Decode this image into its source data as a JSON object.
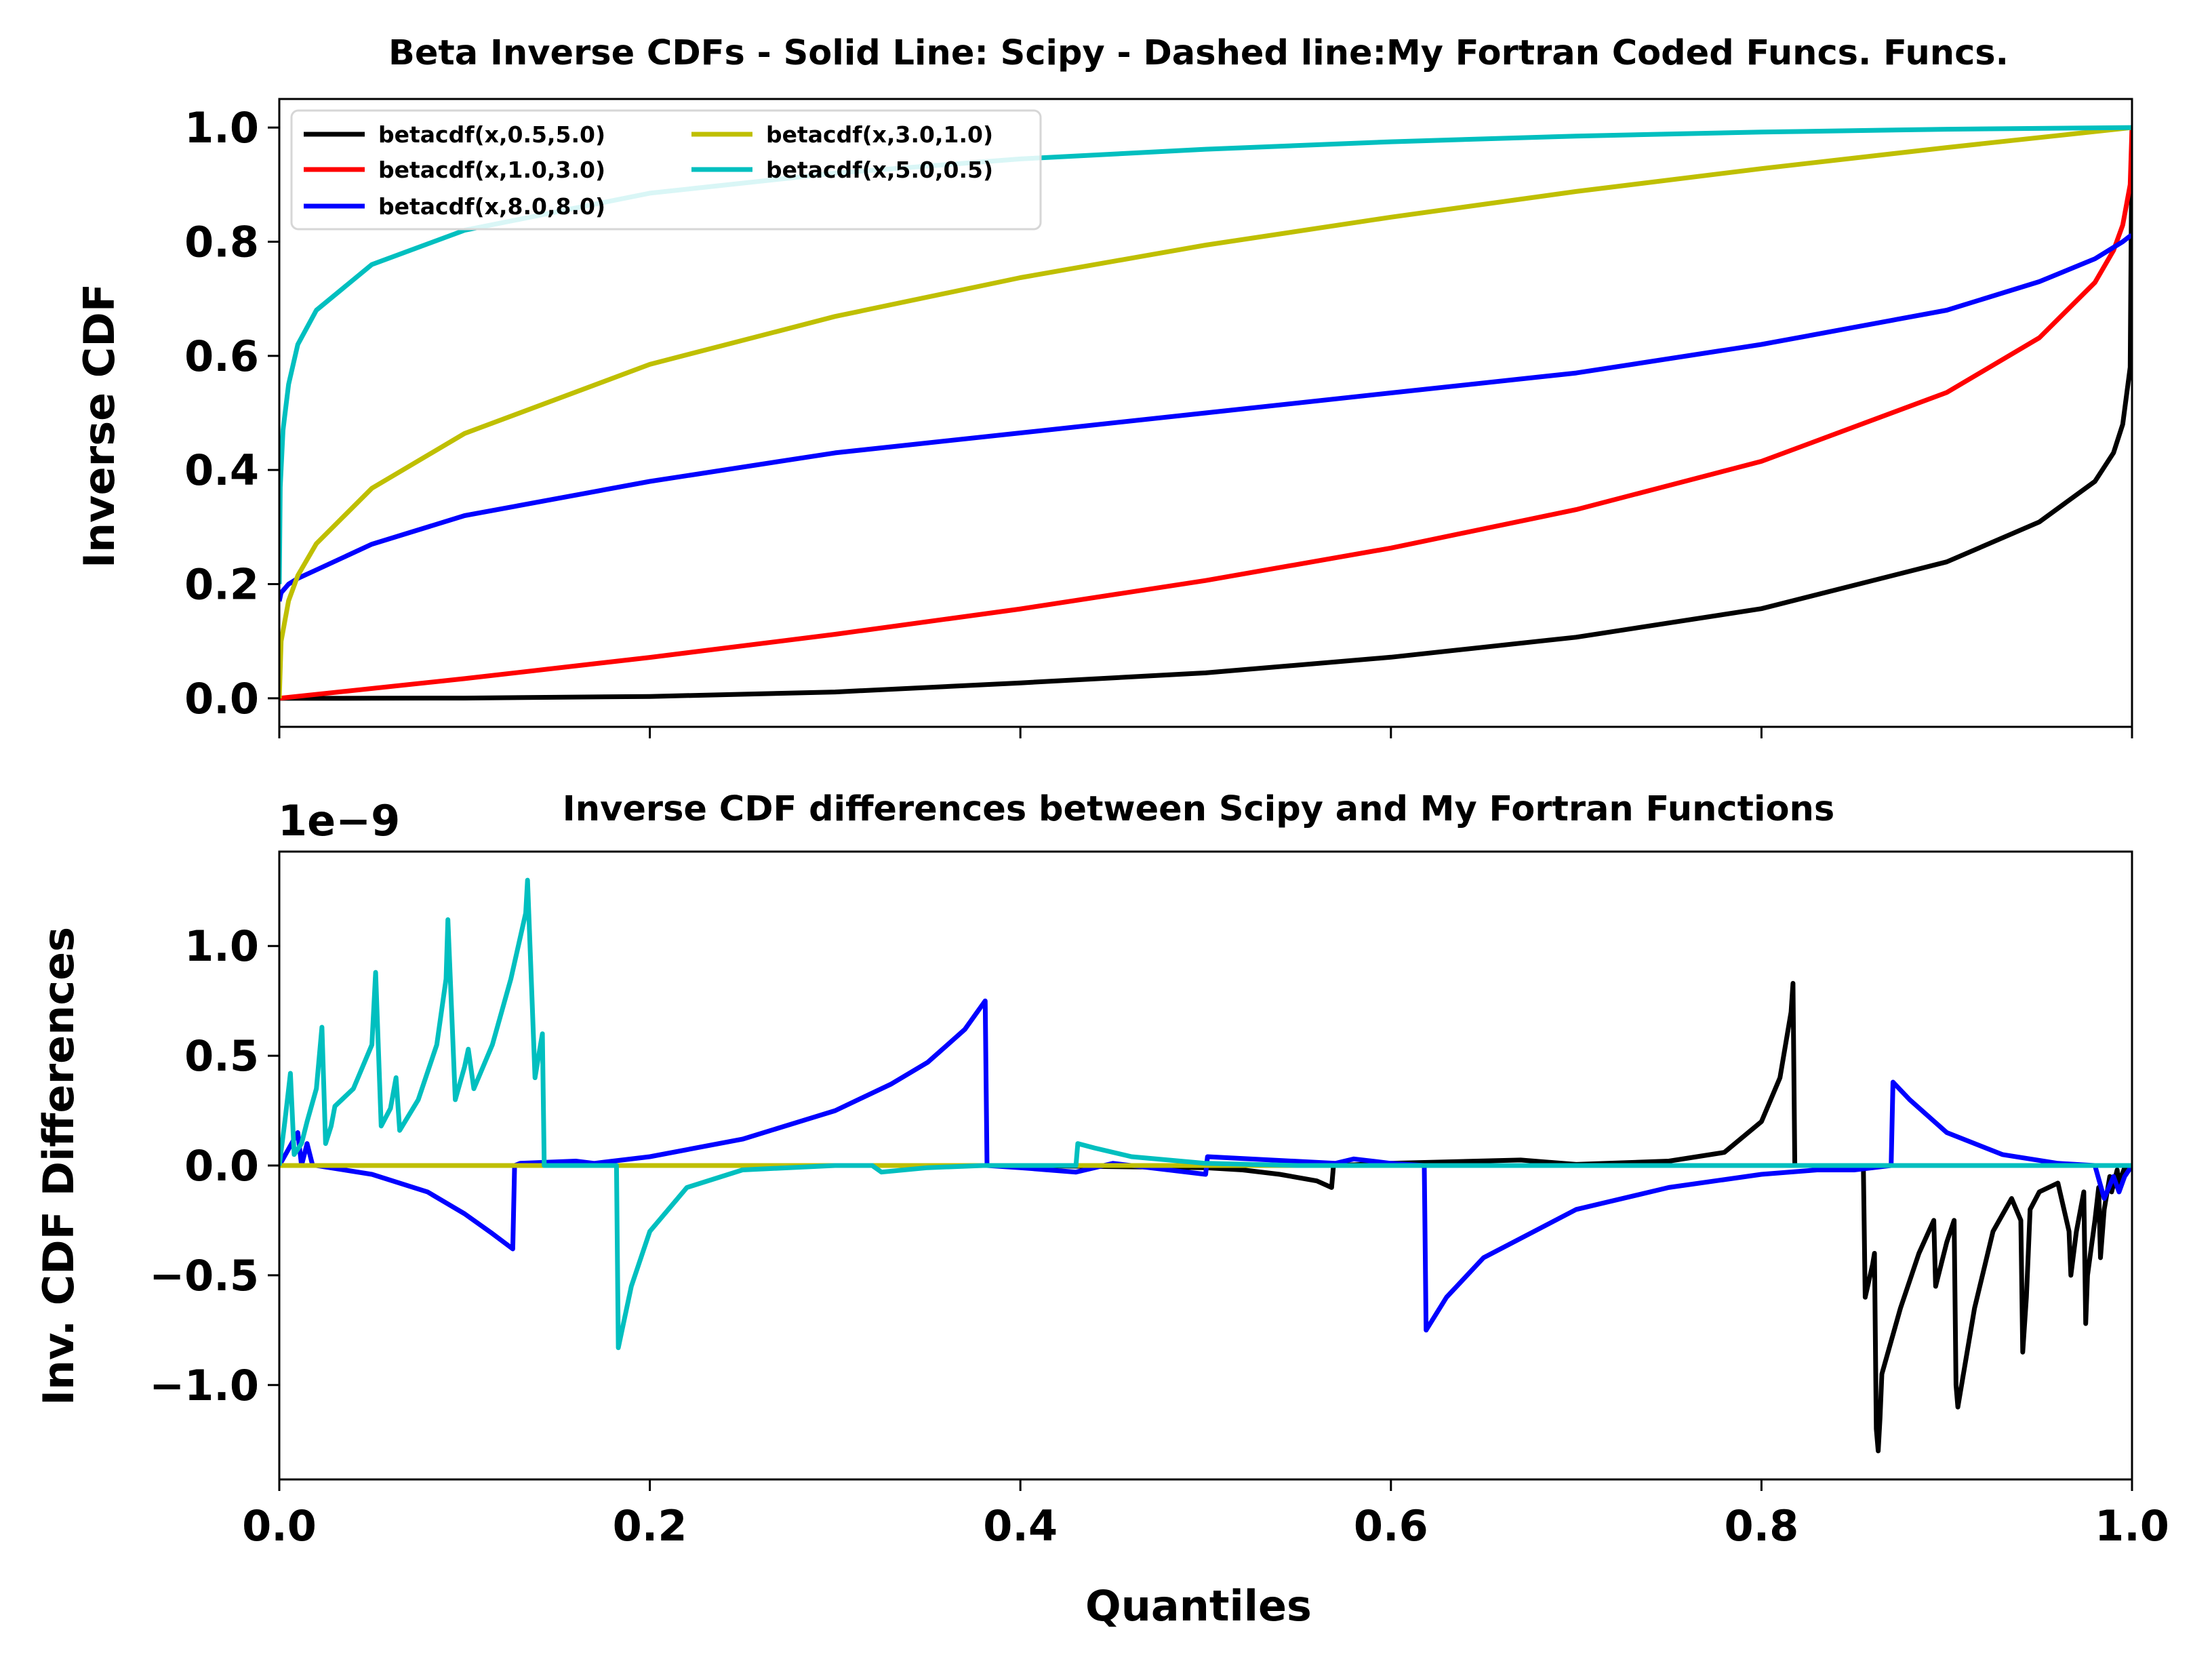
{
  "chart_data": [
    {
      "type": "line",
      "title": "Beta Inverse CDFs - Solid Line: Scipy - Dashed line:My Fortran Coded Funcs. Funcs.",
      "xlabel": "",
      "ylabel": "Inverse CDF",
      "xlim": [
        0,
        1
      ],
      "ylim": [
        -0.05,
        1.05
      ],
      "xticks": [
        0.0,
        0.2,
        0.4,
        0.6,
        0.8,
        1.0
      ],
      "xtick_labels_shown": false,
      "yticks": [
        0.0,
        0.2,
        0.4,
        0.6,
        0.8,
        1.0
      ],
      "ytick_labels": [
        "0.0",
        "0.2",
        "0.4",
        "0.6",
        "0.8",
        "1.0"
      ],
      "grid": false,
      "legend_position": "top-left",
      "legend_columns": 2,
      "series": [
        {
          "name": "betacdf(x,0.5,5.0)",
          "color": "#000000",
          "x": [
            0,
            0.05,
            0.1,
            0.2,
            0.3,
            0.4,
            0.5,
            0.6,
            0.7,
            0.8,
            0.9,
            0.95,
            0.98,
            0.99,
            0.995,
            0.999,
            1.0
          ],
          "y": [
            0,
            0.0001,
            0.0004,
            0.0032,
            0.011,
            0.027,
            0.0445,
            0.072,
            0.107,
            0.157,
            0.239,
            0.309,
            0.38,
            0.43,
            0.48,
            0.58,
            1.0
          ]
        },
        {
          "name": "betacdf(x,1.0,3.0)",
          "color": "#ff0000",
          "x": [
            0,
            0.1,
            0.2,
            0.3,
            0.4,
            0.5,
            0.6,
            0.7,
            0.8,
            0.9,
            0.95,
            0.98,
            0.99,
            0.995,
            0.999,
            1.0
          ],
          "y": [
            0,
            0.0345,
            0.0717,
            0.1121,
            0.1566,
            0.2063,
            0.2632,
            0.3306,
            0.4152,
            0.5358,
            0.6316,
            0.7286,
            0.7846,
            0.829,
            0.9,
            1.0
          ]
        },
        {
          "name": "betacdf(x,8.0,8.0)",
          "color": "#0000ff",
          "x": [
            0,
            0.001,
            0.005,
            0.01,
            0.02,
            0.05,
            0.1,
            0.2,
            0.3,
            0.4,
            0.5,
            0.6,
            0.7,
            0.8,
            0.9,
            0.95,
            0.98,
            0.99,
            0.995,
            0.999,
            1.0
          ],
          "y": [
            0.17,
            0.185,
            0.2,
            0.21,
            0.225,
            0.27,
            0.32,
            0.38,
            0.43,
            0.465,
            0.5,
            0.535,
            0.57,
            0.62,
            0.68,
            0.73,
            0.77,
            0.79,
            0.8,
            0.81,
            0.81
          ]
        },
        {
          "name": "betacdf(x,3.0,1.0)",
          "color": "#bfbf00",
          "x": [
            0,
            0.001,
            0.005,
            0.01,
            0.02,
            0.05,
            0.1,
            0.2,
            0.3,
            0.4,
            0.5,
            0.6,
            0.7,
            0.8,
            0.9,
            1.0
          ],
          "y": [
            0,
            0.1,
            0.171,
            0.215,
            0.271,
            0.368,
            0.464,
            0.585,
            0.669,
            0.737,
            0.794,
            0.843,
            0.888,
            0.928,
            0.965,
            1.0
          ]
        },
        {
          "name": "betacdf(x,5.0,0.5)",
          "color": "#00bfbf",
          "x": [
            0,
            0.0005,
            0.002,
            0.005,
            0.01,
            0.02,
            0.05,
            0.1,
            0.2,
            0.3,
            0.4,
            0.5,
            0.6,
            0.7,
            0.8,
            0.9,
            1.0
          ],
          "y": [
            0.2,
            0.37,
            0.47,
            0.55,
            0.62,
            0.68,
            0.76,
            0.82,
            0.885,
            0.92,
            0.945,
            0.962,
            0.975,
            0.985,
            0.992,
            0.997,
            1.0
          ]
        }
      ]
    },
    {
      "type": "line",
      "title": "Inverse CDF differences between Scipy and My Fortran Functions",
      "xlabel": "Quantiles",
      "ylabel": "Inv. CDF Differences",
      "offset_label": "1e−9",
      "xlim": [
        0,
        1
      ],
      "ylim": [
        -1.43,
        1.43
      ],
      "xticks": [
        0.0,
        0.2,
        0.4,
        0.6,
        0.8,
        1.0
      ],
      "xtick_labels": [
        "0.0",
        "0.2",
        "0.4",
        "0.6",
        "0.8",
        "1.0"
      ],
      "yticks": [
        -1.0,
        -0.5,
        0.0,
        0.5,
        1.0
      ],
      "ytick_labels": [
        "−1.0",
        "−0.5",
        "0.0",
        "0.5",
        "1.0"
      ],
      "grid": false,
      "series": [
        {
          "color": "#000000",
          "x": [
            0,
            0.2,
            0.4,
            0.5,
            0.52,
            0.54,
            0.56,
            0.568,
            0.569,
            0.6,
            0.67,
            0.7,
            0.75,
            0.78,
            0.8,
            0.81,
            0.816,
            0.817,
            0.818,
            0.855,
            0.856,
            0.86,
            0.861,
            0.862,
            0.863,
            0.864,
            0.865,
            0.875,
            0.885,
            0.893,
            0.894,
            0.9,
            0.904,
            0.905,
            0.906,
            0.915,
            0.925,
            0.935,
            0.94,
            0.941,
            0.943,
            0.944,
            0.945,
            0.95,
            0.96,
            0.966,
            0.967,
            0.97,
            0.974,
            0.975,
            0.976,
            0.98,
            0.982,
            0.983,
            0.985,
            0.988,
            0.989,
            0.992,
            0.993,
            0.996,
            0.997,
            1.0
          ],
          "y": [
            0,
            0,
            0,
            -0.01,
            -0.02,
            -0.04,
            -0.07,
            -0.1,
            0,
            0.01,
            0.025,
            0.005,
            0.02,
            0.06,
            0.2,
            0.4,
            0.7,
            0.83,
            0,
            0,
            -0.6,
            -0.45,
            -0.4,
            -1.2,
            -1.3,
            -1.15,
            -0.95,
            -0.65,
            -0.4,
            -0.25,
            -0.55,
            -0.35,
            -0.25,
            -1.0,
            -1.1,
            -0.65,
            -0.3,
            -0.15,
            -0.25,
            -0.85,
            -0.6,
            -0.4,
            -0.2,
            -0.12,
            -0.08,
            -0.3,
            -0.5,
            -0.3,
            -0.12,
            -0.72,
            -0.5,
            -0.25,
            -0.1,
            -0.42,
            -0.2,
            -0.05,
            -0.12,
            -0.02,
            -0.08,
            -0.01,
            -0.03,
            0
          ]
        },
        {
          "color": "#0000ff",
          "x": [
            0,
            0.01,
            0.012,
            0.015,
            0.018,
            0.02,
            0.05,
            0.08,
            0.1,
            0.115,
            0.126,
            0.127,
            0.13,
            0.16,
            0.17,
            0.2,
            0.25,
            0.3,
            0.33,
            0.35,
            0.37,
            0.381,
            0.382,
            0.4,
            0.43,
            0.45,
            0.5,
            0.501,
            0.57,
            0.58,
            0.6,
            0.618,
            0.619,
            0.63,
            0.65,
            0.7,
            0.75,
            0.8,
            0.83,
            0.85,
            0.87,
            0.871,
            0.88,
            0.9,
            0.93,
            0.96,
            0.98,
            0.985,
            0.99,
            0.993,
            0.996,
            1.0
          ],
          "y": [
            0,
            0.15,
            0,
            0.1,
            0,
            0,
            -0.04,
            -0.12,
            -0.22,
            -0.31,
            -0.38,
            0,
            0.01,
            0.02,
            0.01,
            0.04,
            0.12,
            0.25,
            0.37,
            0.47,
            0.62,
            0.75,
            0,
            -0.01,
            -0.03,
            0.01,
            -0.04,
            0.04,
            0.01,
            0.03,
            0.01,
            0,
            -0.75,
            -0.6,
            -0.42,
            -0.2,
            -0.1,
            -0.04,
            -0.02,
            -0.02,
            0,
            0.38,
            0.3,
            0.15,
            0.05,
            0.01,
            0,
            -0.15,
            -0.05,
            -0.12,
            -0.05,
            0
          ]
        },
        {
          "color": "#bfbf00",
          "x": [
            0,
            0.2,
            0.5,
            0.8,
            0.95,
            1.0
          ],
          "y": [
            0,
            0.0,
            0.0,
            0.0,
            0.0,
            0
          ]
        },
        {
          "color": "#00bfbf",
          "x": [
            0,
            0.003,
            0.006,
            0.008,
            0.012,
            0.015,
            0.02,
            0.023,
            0.025,
            0.028,
            0.03,
            0.04,
            0.05,
            0.052,
            0.055,
            0.06,
            0.063,
            0.065,
            0.075,
            0.085,
            0.09,
            0.091,
            0.095,
            0.1,
            0.102,
            0.105,
            0.115,
            0.125,
            0.133,
            0.134,
            0.138,
            0.14,
            0.142,
            0.143,
            0.16,
            0.18,
            0.182,
            0.183,
            0.19,
            0.2,
            0.22,
            0.25,
            0.3,
            0.32,
            0.325,
            0.35,
            0.38,
            0.41,
            0.43,
            0.431,
            0.44,
            0.46,
            0.5,
            0.55,
            0.6,
            0.7,
            0.8,
            0.9,
            1.0
          ],
          "y": [
            0,
            0.2,
            0.42,
            0.05,
            0.1,
            0.2,
            0.35,
            0.63,
            0.1,
            0.18,
            0.27,
            0.35,
            0.55,
            0.88,
            0.18,
            0.26,
            0.4,
            0.16,
            0.3,
            0.55,
            0.85,
            1.12,
            0.3,
            0.45,
            0.53,
            0.35,
            0.55,
            0.85,
            1.15,
            1.3,
            0.4,
            0.5,
            0.6,
            0,
            0,
            0,
            0,
            -0.83,
            -0.55,
            -0.3,
            -0.1,
            -0.02,
            0,
            0,
            -0.03,
            -0.01,
            0,
            0,
            0,
            0.1,
            0.08,
            0.04,
            0.01,
            0,
            0,
            0,
            0,
            0,
            0
          ]
        }
      ]
    }
  ]
}
